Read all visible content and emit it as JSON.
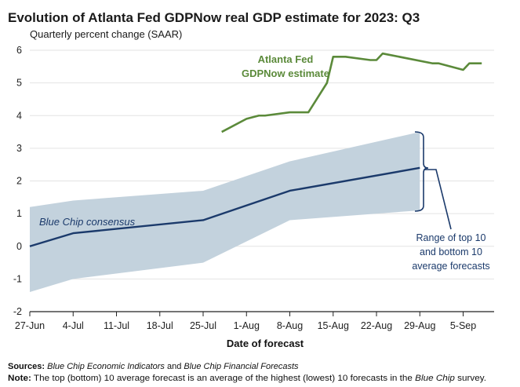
{
  "chart_data": {
    "type": "line",
    "title": "Evolution of Atlanta Fed GDPNow real GDP estimate for 2023: Q3",
    "subtitle": "Quarterly percent change (SAAR)",
    "xlabel": "Date of forecast",
    "ylabel": "",
    "ylim": [
      -2,
      6
    ],
    "yticks": [
      -2,
      -1,
      0,
      1,
      2,
      3,
      4,
      5,
      6
    ],
    "x_range": [
      "2023-06-27",
      "2023-09-10"
    ],
    "x_ticks": [
      {
        "date": "2023-06-27",
        "label": "27-Jun"
      },
      {
        "date": "2023-07-04",
        "label": "4-Jul"
      },
      {
        "date": "2023-07-11",
        "label": "11-Jul"
      },
      {
        "date": "2023-07-18",
        "label": "18-Jul"
      },
      {
        "date": "2023-07-25",
        "label": "25-Jul"
      },
      {
        "date": "2023-08-01",
        "label": "1-Aug"
      },
      {
        "date": "2023-08-08",
        "label": "8-Aug"
      },
      {
        "date": "2023-08-15",
        "label": "15-Aug"
      },
      {
        "date": "2023-08-22",
        "label": "22-Aug"
      },
      {
        "date": "2023-08-29",
        "label": "29-Aug"
      },
      {
        "date": "2023-09-05",
        "label": "5-Sep"
      }
    ],
    "grid": "horizontal",
    "colors": {
      "gdpnow": "#5b8a3a",
      "bluechip": "#1b3a6b",
      "band": "#c3d2dd"
    },
    "series": [
      {
        "name": "Atlanta Fed GDPNow estimate",
        "points": [
          {
            "x": "2023-07-28",
            "y": 3.5
          },
          {
            "x": "2023-08-01",
            "y": 3.9
          },
          {
            "x": "2023-08-03",
            "y": 4.0
          },
          {
            "x": "2023-08-04",
            "y": 4.0
          },
          {
            "x": "2023-08-08",
            "y": 4.1
          },
          {
            "x": "2023-08-11",
            "y": 4.1
          },
          {
            "x": "2023-08-14",
            "y": 5.0
          },
          {
            "x": "2023-08-15",
            "y": 5.8
          },
          {
            "x": "2023-08-17",
            "y": 5.8
          },
          {
            "x": "2023-08-21",
            "y": 5.7
          },
          {
            "x": "2023-08-22",
            "y": 5.7
          },
          {
            "x": "2023-08-23",
            "y": 5.9
          },
          {
            "x": "2023-08-31",
            "y": 5.6
          },
          {
            "x": "2023-09-01",
            "y": 5.6
          },
          {
            "x": "2023-09-05",
            "y": 5.4
          },
          {
            "x": "2023-09-06",
            "y": 5.6
          },
          {
            "x": "2023-09-08",
            "y": 5.6
          }
        ]
      },
      {
        "name": "Blue Chip consensus",
        "points": [
          {
            "x": "2023-06-27",
            "y": 0.0
          },
          {
            "x": "2023-07-04",
            "y": 0.4
          },
          {
            "x": "2023-07-25",
            "y": 0.8
          },
          {
            "x": "2023-08-08",
            "y": 1.7
          },
          {
            "x": "2023-08-29",
            "y": 2.4
          }
        ],
        "range_high": [
          1.2,
          1.4,
          1.7,
          2.6,
          3.5
        ],
        "range_low": [
          -1.4,
          -1.0,
          -0.5,
          0.8,
          1.1
        ]
      }
    ],
    "annotations": {
      "gdpnow_label": [
        "Atlanta Fed",
        "GDPNow estimate"
      ],
      "bluechip_label": "Blue Chip consensus",
      "range_label": [
        "Range of top 10",
        "and bottom 10",
        "average forecasts"
      ]
    }
  },
  "footer": {
    "sources_prefix": "Sources:",
    "sources_src1": "Blue Chip Economic Indicators",
    "sources_and": "and",
    "sources_src2": "Blue Chip Financial Forecasts",
    "note_prefix": "Note:",
    "note_text_1": "The top (bottom) 10 average forecast is an average of the highest (lowest) 10 forecasts in the",
    "note_italic": "Blue Chip",
    "note_text_2": "survey."
  }
}
